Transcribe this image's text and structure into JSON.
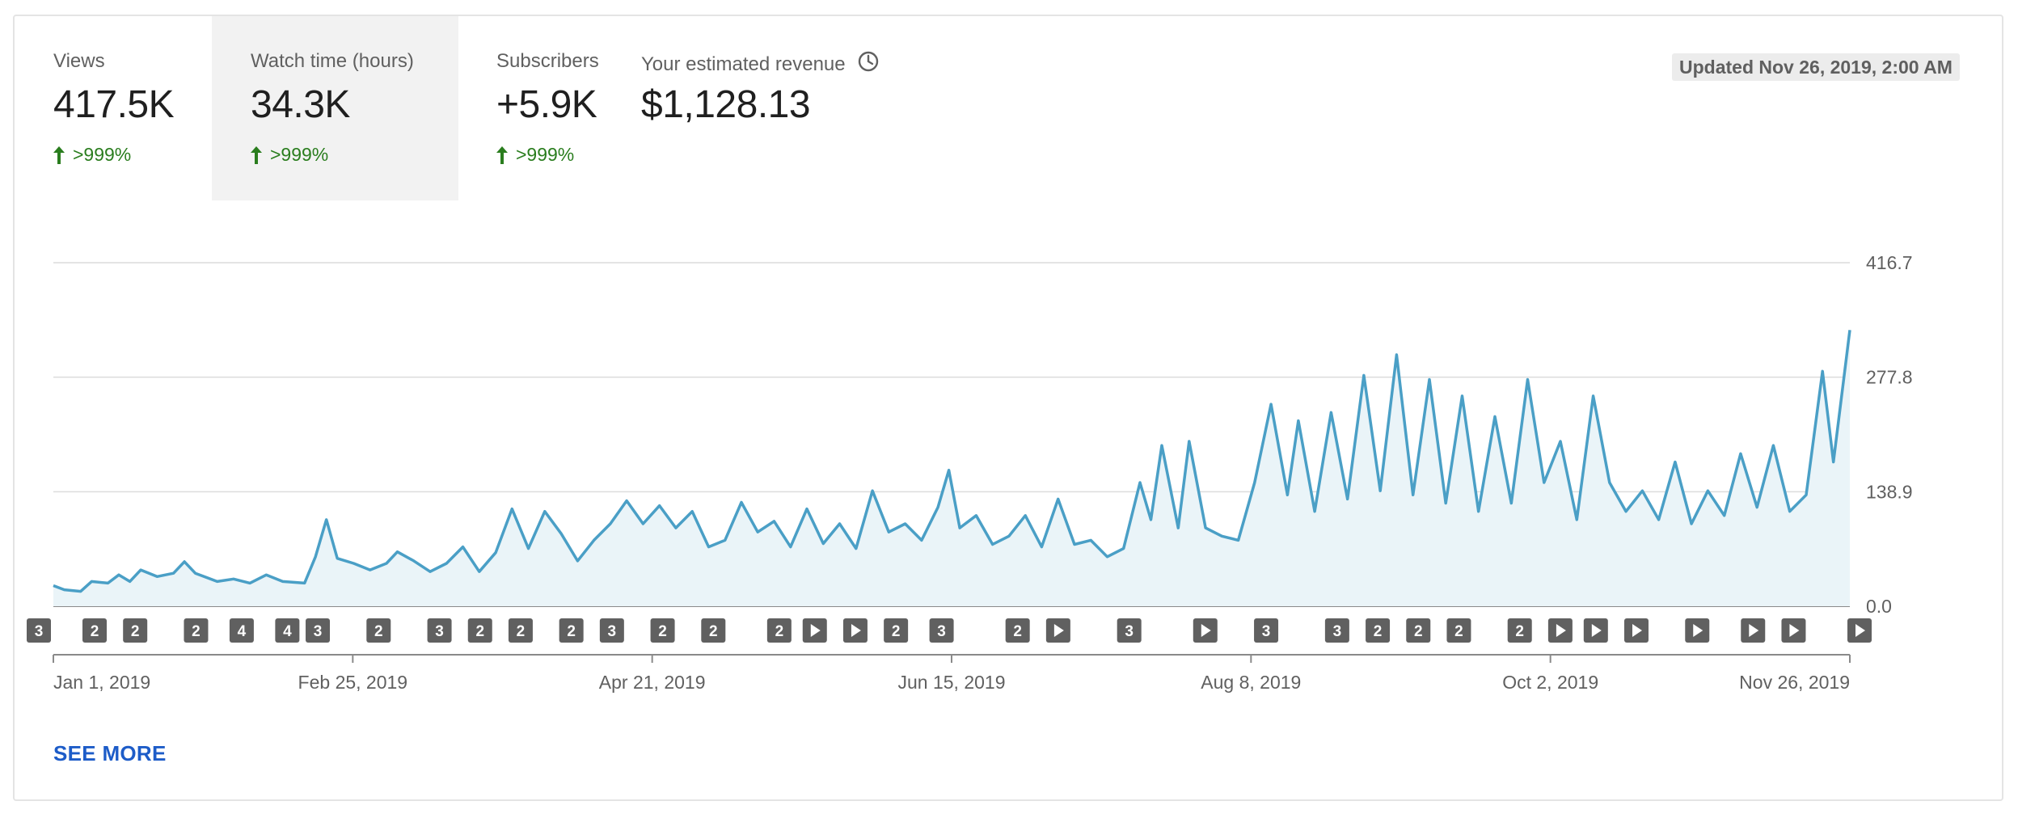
{
  "metrics": [
    {
      "label": "Views",
      "value": "417.5K",
      "change": ">999%",
      "selected": false
    },
    {
      "label": "Watch time (hours)",
      "value": "34.3K",
      "change": ">999%",
      "selected": true
    },
    {
      "label": "Subscribers",
      "value": "+5.9K",
      "change": ">999%",
      "selected": false
    },
    {
      "label": "Your estimated revenue",
      "value": "$1,128.13",
      "change": "",
      "selected": false
    }
  ],
  "updated": "Updated Nov 26, 2019, 2:00 AM",
  "see_more": "SEE MORE",
  "colors": {
    "line": "#4a9fc6",
    "fill": "#eaf4f8",
    "positive": "#2a7d1e",
    "link": "#1d5cc8",
    "marker": "#606060"
  },
  "chart_data": {
    "type": "area",
    "title": "",
    "xlabel": "",
    "ylabel": "",
    "ylim": [
      0,
      416.7
    ],
    "yticks": [
      "0.0",
      "138.9",
      "277.8",
      "416.7"
    ],
    "x_range": [
      "2019-01-01",
      "2019-11-26"
    ],
    "xticks": [
      "Jan 1, 2019",
      "Feb 25, 2019",
      "Apr 21, 2019",
      "Jun 15, 2019",
      "Aug 8, 2019",
      "Oct 2, 2019",
      "Nov 26, 2019"
    ],
    "grid": true,
    "keypoints": [
      [
        "2019-01-01",
        25
      ],
      [
        "2019-01-03",
        20
      ],
      [
        "2019-01-06",
        18
      ],
      [
        "2019-01-08",
        30
      ],
      [
        "2019-01-11",
        28
      ],
      [
        "2019-01-13",
        38
      ],
      [
        "2019-01-15",
        30
      ],
      [
        "2019-01-17",
        44
      ],
      [
        "2019-01-20",
        36
      ],
      [
        "2019-01-23",
        40
      ],
      [
        "2019-01-25",
        54
      ],
      [
        "2019-01-27",
        40
      ],
      [
        "2019-01-31",
        30
      ],
      [
        "2019-02-03",
        33
      ],
      [
        "2019-02-06",
        28
      ],
      [
        "2019-02-09",
        38
      ],
      [
        "2019-02-12",
        30
      ],
      [
        "2019-02-16",
        28
      ],
      [
        "2019-02-18",
        60
      ],
      [
        "2019-02-20",
        105
      ],
      [
        "2019-02-22",
        58
      ],
      [
        "2019-02-25",
        52
      ],
      [
        "2019-02-28",
        44
      ],
      [
        "2019-03-03",
        52
      ],
      [
        "2019-03-05",
        66
      ],
      [
        "2019-03-08",
        55
      ],
      [
        "2019-03-11",
        42
      ],
      [
        "2019-03-14",
        52
      ],
      [
        "2019-03-17",
        72
      ],
      [
        "2019-03-20",
        42
      ],
      [
        "2019-03-23",
        65
      ],
      [
        "2019-03-26",
        118
      ],
      [
        "2019-03-29",
        70
      ],
      [
        "2019-04-01",
        115
      ],
      [
        "2019-04-04",
        88
      ],
      [
        "2019-04-07",
        55
      ],
      [
        "2019-04-10",
        80
      ],
      [
        "2019-04-13",
        100
      ],
      [
        "2019-04-16",
        128
      ],
      [
        "2019-04-19",
        100
      ],
      [
        "2019-04-22",
        122
      ],
      [
        "2019-04-25",
        95
      ],
      [
        "2019-04-28",
        115
      ],
      [
        "2019-05-01",
        72
      ],
      [
        "2019-05-04",
        80
      ],
      [
        "2019-05-07",
        126
      ],
      [
        "2019-05-10",
        90
      ],
      [
        "2019-05-13",
        103
      ],
      [
        "2019-05-16",
        72
      ],
      [
        "2019-05-19",
        118
      ],
      [
        "2019-05-22",
        76
      ],
      [
        "2019-05-25",
        100
      ],
      [
        "2019-05-28",
        70
      ],
      [
        "2019-05-31",
        140
      ],
      [
        "2019-06-03",
        90
      ],
      [
        "2019-06-06",
        100
      ],
      [
        "2019-06-09",
        80
      ],
      [
        "2019-06-12",
        120
      ],
      [
        "2019-06-14",
        165
      ],
      [
        "2019-06-16",
        95
      ],
      [
        "2019-06-19",
        110
      ],
      [
        "2019-06-22",
        75
      ],
      [
        "2019-06-25",
        85
      ],
      [
        "2019-06-28",
        110
      ],
      [
        "2019-07-01",
        72
      ],
      [
        "2019-07-04",
        130
      ],
      [
        "2019-07-07",
        75
      ],
      [
        "2019-07-10",
        80
      ],
      [
        "2019-07-13",
        60
      ],
      [
        "2019-07-16",
        70
      ],
      [
        "2019-07-19",
        150
      ],
      [
        "2019-07-21",
        105
      ],
      [
        "2019-07-23",
        195
      ],
      [
        "2019-07-26",
        95
      ],
      [
        "2019-07-28",
        200
      ],
      [
        "2019-07-31",
        95
      ],
      [
        "2019-08-03",
        85
      ],
      [
        "2019-08-06",
        80
      ],
      [
        "2019-08-09",
        150
      ],
      [
        "2019-08-12",
        245
      ],
      [
        "2019-08-15",
        135
      ],
      [
        "2019-08-17",
        225
      ],
      [
        "2019-08-20",
        115
      ],
      [
        "2019-08-23",
        235
      ],
      [
        "2019-08-26",
        130
      ],
      [
        "2019-08-29",
        280
      ],
      [
        "2019-09-01",
        140
      ],
      [
        "2019-09-04",
        305
      ],
      [
        "2019-09-07",
        135
      ],
      [
        "2019-09-10",
        275
      ],
      [
        "2019-09-13",
        125
      ],
      [
        "2019-09-16",
        255
      ],
      [
        "2019-09-19",
        115
      ],
      [
        "2019-09-22",
        230
      ],
      [
        "2019-09-25",
        125
      ],
      [
        "2019-09-28",
        275
      ],
      [
        "2019-10-01",
        150
      ],
      [
        "2019-10-04",
        200
      ],
      [
        "2019-10-07",
        105
      ],
      [
        "2019-10-10",
        255
      ],
      [
        "2019-10-13",
        150
      ],
      [
        "2019-10-16",
        115
      ],
      [
        "2019-10-19",
        140
      ],
      [
        "2019-10-22",
        105
      ],
      [
        "2019-10-25",
        175
      ],
      [
        "2019-10-28",
        100
      ],
      [
        "2019-10-31",
        140
      ],
      [
        "2019-11-03",
        110
      ],
      [
        "2019-11-06",
        185
      ],
      [
        "2019-11-09",
        120
      ],
      [
        "2019-11-12",
        195
      ],
      [
        "2019-11-15",
        115
      ],
      [
        "2019-11-18",
        135
      ],
      [
        "2019-11-21",
        285
      ],
      [
        "2019-11-23",
        175
      ],
      [
        "2019-11-26",
        335
      ]
    ]
  },
  "markers": [
    {
      "label": "3",
      "date": "2019-01-01"
    },
    {
      "label": "2",
      "date": "2019-01-12"
    },
    {
      "label": "2",
      "date": "2019-01-20"
    },
    {
      "label": "2",
      "date": "2019-02-01"
    },
    {
      "label": "4",
      "date": "2019-02-10"
    },
    {
      "label": "4",
      "date": "2019-02-19"
    },
    {
      "label": "3",
      "date": "2019-02-25"
    },
    {
      "label": "2",
      "date": "2019-03-09"
    },
    {
      "label": "3",
      "date": "2019-03-21"
    },
    {
      "label": "2",
      "date": "2019-03-29"
    },
    {
      "label": "2",
      "date": "2019-04-06"
    },
    {
      "label": "2",
      "date": "2019-04-16"
    },
    {
      "label": "3",
      "date": "2019-04-24"
    },
    {
      "label": "2",
      "date": "2019-05-04"
    },
    {
      "label": "2",
      "date": "2019-05-14"
    },
    {
      "label": "2",
      "date": "2019-05-27"
    },
    {
      "label": "play",
      "date": "2019-06-03"
    },
    {
      "label": "play",
      "date": "2019-06-11"
    },
    {
      "label": "2",
      "date": "2019-06-19"
    },
    {
      "label": "3",
      "date": "2019-06-28"
    },
    {
      "label": "2",
      "date": "2019-07-13"
    },
    {
      "label": "play",
      "date": "2019-07-21"
    },
    {
      "label": "3",
      "date": "2019-08-04"
    },
    {
      "label": "play",
      "date": "2019-08-19"
    },
    {
      "label": "3",
      "date": "2019-08-31"
    },
    {
      "label": "3",
      "date": "2019-09-14"
    },
    {
      "label": "2",
      "date": "2019-09-22"
    },
    {
      "label": "2",
      "date": "2019-09-30"
    },
    {
      "label": "2",
      "date": "2019-10-08"
    },
    {
      "label": "2",
      "date": "2019-10-20"
    },
    {
      "label": "play",
      "date": "2019-10-28"
    },
    {
      "label": "play",
      "date": "2019-11-04"
    },
    {
      "label": "play",
      "date": "2019-11-12"
    },
    {
      "label": "play",
      "date": "2019-11-24"
    },
    {
      "label": "play",
      "date": "2019-12-05"
    },
    {
      "label": "play",
      "date": "2019-12-13"
    },
    {
      "label": "play",
      "date": "2019-12-26"
    }
  ]
}
